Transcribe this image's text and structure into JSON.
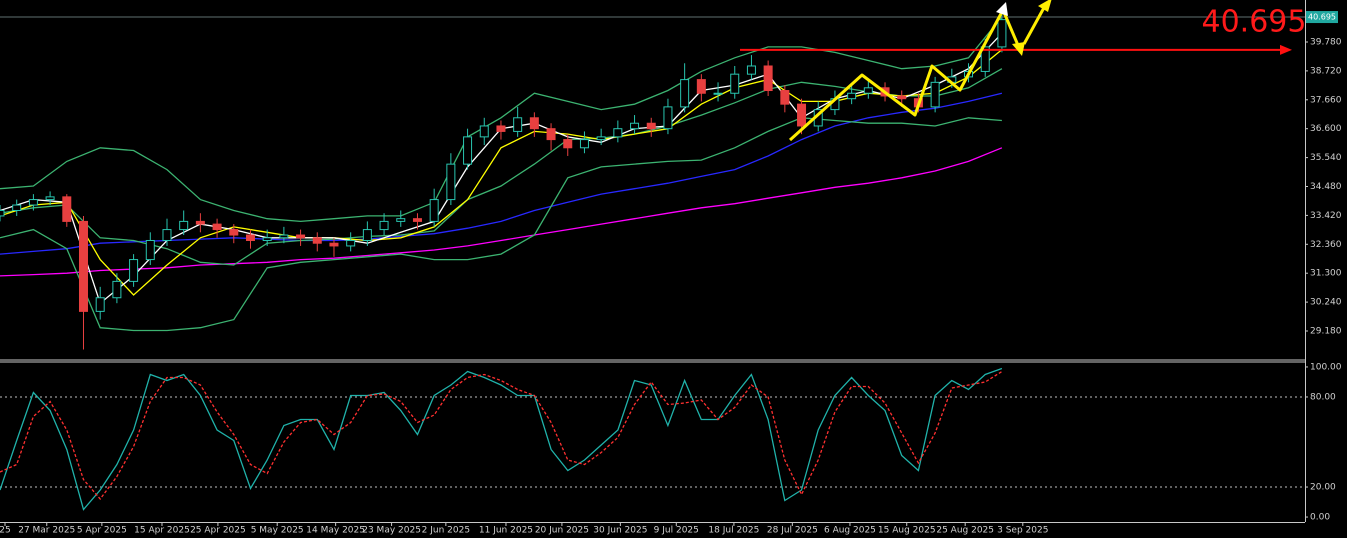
{
  "chart_data": [
    {
      "type": "candlestick",
      "x": [
        0,
        2,
        4,
        6,
        8,
        10,
        12,
        14,
        16,
        18,
        20,
        22,
        24,
        26,
        28,
        30,
        32,
        34,
        36,
        38,
        40,
        42,
        44,
        46,
        48,
        50,
        52,
        54,
        56,
        58,
        60,
        62,
        64,
        66,
        68,
        70,
        72,
        74,
        76,
        78,
        80,
        82,
        84,
        86,
        88,
        90,
        92,
        94,
        96,
        98,
        100,
        102,
        104,
        106,
        108,
        110,
        112,
        114,
        116,
        118,
        120
      ],
      "ohlc": [
        [
          33.4,
          33.8,
          33.2,
          33.6
        ],
        [
          33.6,
          34.0,
          33.4,
          33.8
        ],
        [
          33.8,
          34.2,
          33.6,
          34.0
        ],
        [
          34.0,
          34.3,
          33.8,
          34.1
        ],
        [
          34.1,
          34.2,
          33.0,
          33.2
        ],
        [
          33.2,
          33.4,
          28.5,
          29.9
        ],
        [
          29.9,
          30.8,
          29.6,
          30.4
        ],
        [
          30.4,
          31.3,
          30.2,
          31.0
        ],
        [
          31.0,
          32.0,
          30.8,
          31.8
        ],
        [
          31.8,
          32.8,
          31.6,
          32.5
        ],
        [
          32.5,
          33.3,
          32.3,
          32.9
        ],
        [
          32.9,
          33.6,
          32.7,
          33.2
        ],
        [
          33.2,
          33.5,
          32.8,
          33.1
        ],
        [
          33.1,
          33.3,
          32.6,
          32.9
        ],
        [
          32.9,
          33.1,
          32.4,
          32.7
        ],
        [
          32.7,
          32.9,
          32.2,
          32.5
        ],
        [
          32.5,
          32.9,
          32.3,
          32.6
        ],
        [
          32.6,
          33.0,
          32.4,
          32.7
        ],
        [
          32.7,
          32.9,
          32.3,
          32.6
        ],
        [
          32.6,
          32.8,
          32.1,
          32.4
        ],
        [
          32.4,
          32.6,
          31.9,
          32.3
        ],
        [
          32.3,
          32.8,
          32.1,
          32.5
        ],
        [
          32.5,
          33.2,
          32.3,
          32.9
        ],
        [
          32.9,
          33.5,
          32.7,
          33.2
        ],
        [
          33.2,
          33.6,
          33.0,
          33.3
        ],
        [
          33.3,
          33.5,
          32.9,
          33.2
        ],
        [
          33.2,
          34.4,
          33.0,
          34.0
        ],
        [
          34.0,
          35.7,
          33.8,
          35.3
        ],
        [
          35.3,
          36.6,
          35.1,
          36.3
        ],
        [
          36.3,
          37.0,
          36.0,
          36.7
        ],
        [
          36.7,
          36.9,
          36.2,
          36.5
        ],
        [
          36.5,
          37.4,
          36.3,
          37.0
        ],
        [
          37.0,
          37.2,
          36.3,
          36.6
        ],
        [
          36.6,
          36.8,
          35.8,
          36.2
        ],
        [
          36.2,
          36.4,
          35.6,
          35.9
        ],
        [
          35.9,
          36.5,
          35.7,
          36.2
        ],
        [
          36.2,
          36.6,
          36.0,
          36.3
        ],
        [
          36.3,
          36.9,
          36.1,
          36.6
        ],
        [
          36.6,
          37.1,
          36.4,
          36.8
        ],
        [
          36.8,
          37.0,
          36.3,
          36.6
        ],
        [
          36.6,
          37.7,
          36.4,
          37.4
        ],
        [
          37.4,
          39.0,
          37.2,
          38.4
        ],
        [
          38.4,
          38.6,
          37.6,
          37.9
        ],
        [
          37.9,
          38.3,
          37.6,
          37.9
        ],
        [
          37.9,
          38.9,
          37.7,
          38.6
        ],
        [
          38.6,
          39.3,
          38.4,
          38.9
        ],
        [
          38.9,
          39.1,
          37.8,
          38.0
        ],
        [
          38.0,
          38.2,
          37.2,
          37.5
        ],
        [
          37.5,
          37.7,
          36.4,
          36.7
        ],
        [
          36.7,
          37.6,
          36.5,
          37.3
        ],
        [
          37.3,
          38.0,
          37.1,
          37.7
        ],
        [
          37.7,
          38.2,
          37.5,
          37.9
        ],
        [
          37.9,
          38.4,
          37.7,
          38.1
        ],
        [
          38.1,
          38.3,
          37.6,
          37.8
        ],
        [
          37.8,
          38.0,
          37.4,
          37.7
        ],
        [
          37.7,
          37.9,
          37.2,
          37.4
        ],
        [
          37.4,
          38.5,
          37.2,
          38.3
        ],
        [
          38.3,
          38.8,
          38.1,
          38.5
        ],
        [
          38.5,
          39.0,
          38.3,
          38.7
        ],
        [
          38.7,
          39.9,
          38.5,
          39.6
        ],
        [
          39.6,
          40.8,
          39.4,
          40.6
        ]
      ],
      "up_color": "#29c5b0",
      "down_color": "#e84040",
      "xlim": [
        0,
        156.3
      ],
      "ylim": [
        28.19,
        41.32
      ],
      "yticks": [
        {
          "value": 29.18,
          "label": "29.180"
        },
        {
          "value": 30.24,
          "label": "30.240"
        },
        {
          "value": 31.3,
          "label": "31.300"
        },
        {
          "value": 32.36,
          "label": "32.360"
        },
        {
          "value": 33.42,
          "label": "33.420"
        },
        {
          "value": 34.48,
          "label": "34.480"
        },
        {
          "value": 35.54,
          "label": "35.540"
        },
        {
          "value": 36.6,
          "label": "36.600"
        },
        {
          "value": 37.66,
          "label": "37.660"
        },
        {
          "value": 38.72,
          "label": "38.720"
        },
        {
          "value": 39.78,
          "label": "39.780"
        }
      ],
      "xticks": [
        {
          "value": 0.6,
          "label": "25"
        },
        {
          "value": 5.6,
          "label": "27 Mar 2025"
        },
        {
          "value": 12.2,
          "label": "5 Apr 2025"
        },
        {
          "value": 19.4,
          "label": "15 Apr 2025"
        },
        {
          "value": 26.1,
          "label": "25 Apr 2025"
        },
        {
          "value": 33.2,
          "label": "5 May 2025"
        },
        {
          "value": 40.2,
          "label": "14 May 2025"
        },
        {
          "value": 46.9,
          "label": "23 May 2025"
        },
        {
          "value": 53.4,
          "label": "2 Jun 2025"
        },
        {
          "value": 60.6,
          "label": "11 Jun 2025"
        },
        {
          "value": 67.3,
          "label": "20 Jun 2025"
        },
        {
          "value": 74.3,
          "label": "30 Jun 2025"
        },
        {
          "value": 81,
          "label": "9 Jul 2025"
        },
        {
          "value": 87.9,
          "label": "18 Jul 2025"
        },
        {
          "value": 94.9,
          "label": "28 Jul 2025"
        },
        {
          "value": 101.8,
          "label": "6 Aug 2025"
        },
        {
          "value": 108.6,
          "label": "15 Aug 2025"
        },
        {
          "value": 115.6,
          "label": "25 Aug 2025"
        },
        {
          "value": 122.5,
          "label": "3 Sep 2025"
        }
      ],
      "last_price": 40.695,
      "resistance": 39.49,
      "resistance_color": "#ff1010",
      "overlays": {
        "x": [
          0,
          4,
          8,
          12,
          16,
          20,
          24,
          28,
          32,
          36,
          40,
          44,
          48,
          52,
          56,
          60,
          64,
          68,
          72,
          76,
          80,
          84,
          88,
          92,
          96,
          100,
          104,
          108,
          112,
          116,
          120
        ],
        "series": [
          {
            "color": "#ff00ff",
            "values": [
              31.2,
              31.25,
              31.3,
              31.4,
              31.45,
              31.5,
              31.6,
              31.65,
              31.7,
              31.8,
              31.85,
              31.95,
              32.05,
              32.15,
              32.3,
              32.5,
              32.7,
              32.9,
              33.1,
              33.3,
              33.5,
              33.7,
              33.85,
              34.05,
              34.25,
              34.45,
              34.6,
              34.8,
              35.05,
              35.4,
              35.9
            ]
          },
          {
            "color": "#2828ff",
            "values": [
              32.0,
              32.1,
              32.2,
              32.4,
              32.45,
              32.5,
              32.55,
              32.6,
              32.55,
              32.5,
              32.5,
              32.55,
              32.65,
              32.75,
              32.95,
              33.2,
              33.6,
              33.9,
              34.2,
              34.4,
              34.6,
              34.85,
              35.1,
              35.6,
              36.2,
              36.7,
              37.0,
              37.2,
              37.35,
              37.6,
              37.9
            ]
          },
          {
            "color": "#3cb371",
            "values": [
              34.4,
              34.5,
              35.4,
              35.9,
              35.8,
              35.1,
              34.0,
              33.6,
              33.3,
              33.2,
              33.3,
              33.4,
              33.4,
              33.9,
              36.3,
              37.0,
              37.9,
              37.6,
              37.3,
              37.5,
              38.0,
              38.7,
              39.2,
              39.6,
              39.6,
              39.4,
              39.1,
              38.8,
              38.9,
              39.2,
              40.7
            ]
          },
          {
            "color": "#3cb371",
            "values": [
              33.5,
              33.7,
              33.8,
              32.6,
              32.5,
              32.2,
              31.7,
              31.6,
              32.4,
              32.5,
              32.55,
              32.65,
              32.7,
              32.85,
              34.0,
              34.5,
              35.3,
              36.2,
              36.25,
              36.4,
              36.7,
              37.1,
              37.55,
              38.05,
              38.3,
              38.15,
              37.95,
              37.8,
              37.8,
              38.1,
              38.8
            ]
          },
          {
            "color": "#3cb371",
            "values": [
              32.6,
              32.9,
              32.2,
              29.3,
              29.2,
              29.2,
              29.3,
              29.6,
              31.5,
              31.7,
              31.8,
              31.9,
              32.0,
              31.8,
              31.8,
              32.0,
              32.7,
              34.8,
              35.2,
              35.3,
              35.4,
              35.45,
              35.9,
              36.5,
              37.0,
              36.9,
              36.8,
              36.8,
              36.7,
              37.0,
              36.9
            ]
          },
          {
            "color": "#ffff00",
            "values": [
              33.4,
              33.8,
              33.9,
              31.8,
              30.5,
              31.6,
              32.6,
              33.0,
              32.8,
              32.6,
              32.6,
              32.5,
              32.6,
              33.0,
              34.0,
              35.9,
              36.5,
              36.4,
              36.2,
              36.4,
              36.6,
              37.5,
              38.1,
              38.4,
              37.6,
              37.6,
              37.9,
              37.8,
              37.9,
              38.5,
              39.5
            ]
          },
          {
            "color": "#ffffff",
            "values": [
              33.6,
              34.0,
              33.9,
              30.2,
              31.2,
              32.5,
              33.1,
              32.9,
              32.6,
              32.6,
              32.6,
              32.4,
              32.8,
              33.2,
              35.2,
              36.6,
              36.8,
              36.3,
              36.1,
              36.6,
              36.7,
              38.0,
              38.2,
              38.6,
              37.0,
              37.7,
              38.0,
              37.7,
              38.2,
              38.8,
              40.1
            ]
          }
        ]
      }
    },
    {
      "type": "line",
      "x": [
        0,
        2,
        4,
        6,
        8,
        10,
        12,
        14,
        16,
        18,
        20,
        22,
        24,
        26,
        28,
        30,
        32,
        34,
        36,
        38,
        40,
        42,
        44,
        46,
        48,
        50,
        52,
        54,
        56,
        58,
        60,
        62,
        64,
        66,
        68,
        70,
        72,
        74,
        76,
        78,
        80,
        82,
        84,
        86,
        88,
        90,
        92,
        94,
        96,
        98,
        100,
        102,
        104,
        106,
        108,
        110,
        112,
        114,
        116,
        118,
        120
      ],
      "xlim": [
        0,
        156.3
      ],
      "ylim": [
        -3.3,
        103.3
      ],
      "yticks": [
        {
          "value": 100,
          "label": "100.00"
        },
        {
          "value": 80,
          "label": "80.00"
        },
        {
          "value": 20,
          "label": "20.00"
        },
        {
          "value": 0,
          "label": "0.00"
        }
      ],
      "levels": [
        80,
        20
      ],
      "series": [
        {
          "color": "#20b2aa",
          "values": [
            18,
            51,
            83,
            71,
            45,
            5,
            18,
            35,
            58,
            95,
            91,
            95,
            81,
            58,
            51,
            19,
            38,
            61,
            65,
            65,
            45,
            81,
            81,
            83,
            71,
            55,
            81,
            88,
            97,
            93,
            88,
            81,
            81,
            45,
            31,
            38,
            48,
            58,
            91,
            88,
            61,
            91,
            65,
            65,
            81,
            95,
            65,
            11,
            18,
            58,
            81,
            93,
            81,
            71,
            41,
            31,
            81,
            91,
            85,
            95,
            99
          ]
        },
        {
          "color": "#ff3030",
          "dashed": true,
          "values": [
            30,
            35,
            67,
            77,
            58,
            25,
            12,
            27,
            47,
            77,
            93,
            93,
            88,
            70,
            55,
            35,
            29,
            50,
            63,
            65,
            55,
            63,
            81,
            82,
            77,
            63,
            68,
            85,
            93,
            95,
            91,
            85,
            81,
            63,
            38,
            35,
            43,
            53,
            75,
            90,
            75,
            76,
            78,
            65,
            73,
            88,
            80,
            38,
            15,
            38,
            70,
            87,
            87,
            76,
            56,
            36,
            56,
            86,
            88,
            90,
            97
          ]
        }
      ]
    }
  ]
}
